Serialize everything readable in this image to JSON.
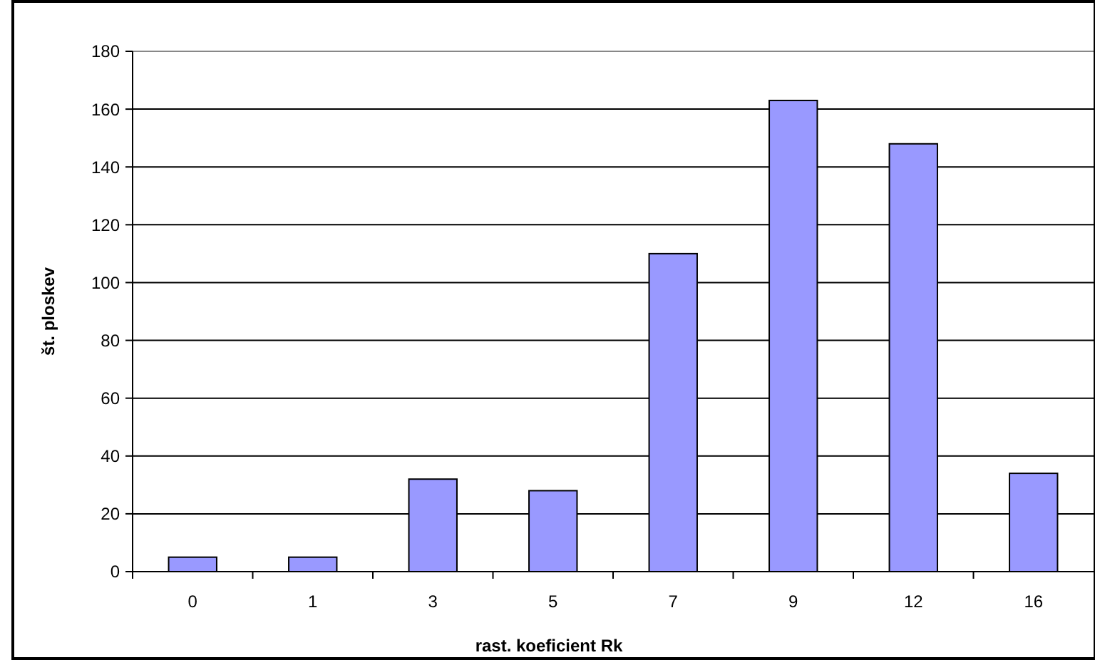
{
  "chart_data": {
    "type": "bar",
    "xlabel": "rast. koeficient Rk",
    "ylabel": "št. ploskev",
    "categories": [
      "0",
      "1",
      "3",
      "5",
      "7",
      "9",
      "12",
      "16"
    ],
    "values": [
      5,
      5,
      32,
      28,
      110,
      163,
      148,
      34
    ],
    "color": "#9999ff",
    "ylim": [
      0,
      180
    ],
    "yticks": [
      0,
      20,
      40,
      60,
      80,
      100,
      120,
      140,
      160,
      180
    ],
    "grid": "y"
  }
}
